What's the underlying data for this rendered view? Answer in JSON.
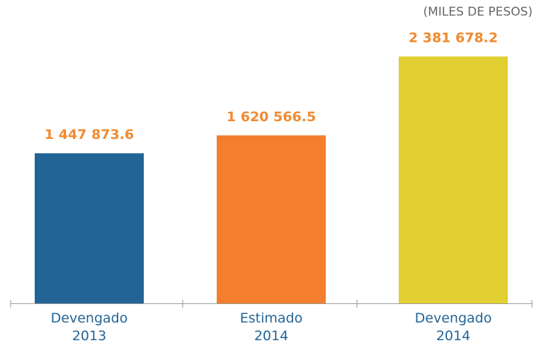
{
  "chart_data": {
    "type": "bar",
    "unit_label": "(MILES DE PESOS)",
    "categories": [
      "Devengado\n2013",
      "Estimado\n2014",
      "Devengado\n2014"
    ],
    "values": [
      1447873.6,
      1620566.5,
      2381678.2
    ],
    "value_labels": [
      "1 447 873.6",
      "1 620 566.5",
      "2 381 678.2"
    ],
    "colors": [
      "#236496",
      "#f37f2e",
      "#e2cf31"
    ],
    "ylim": [
      0,
      2400000
    ]
  }
}
